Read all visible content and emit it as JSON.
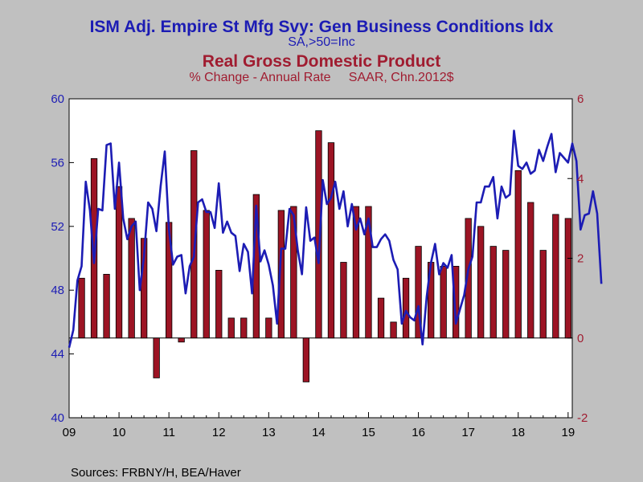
{
  "chart_data": {
    "type": "bar+line",
    "titles": [
      {
        "text": "ISM Adj. Empire St Mfg Svy: Gen Business Conditions Idx",
        "color": "#1c1cb4",
        "style": "bold"
      },
      {
        "text": "SA,>50=Inc",
        "color": "#1c1cb4",
        "style": "normal"
      },
      {
        "text": "Real Gross Domestic Product",
        "color": "#a01c30",
        "style": "bold"
      },
      {
        "text": "% Change - Annual Rate     SAAR, Chn.2012$",
        "color": "#a01c30",
        "style": "normal"
      }
    ],
    "source": "Sources:  FRBNY/H, BEA/Haver",
    "left_axis": {
      "min": 40,
      "max": 60,
      "ticks": [
        40,
        44,
        48,
        52,
        56,
        60
      ],
      "color": "#1c1cb4"
    },
    "right_axis": {
      "min": -2,
      "max": 6,
      "ticks": [
        -2,
        0,
        2,
        4,
        6
      ],
      "color": "#a01c30"
    },
    "x_axis": {
      "min": 2009.0,
      "max": 2019.0833,
      "labels": [
        "09",
        "10",
        "11",
        "12",
        "13",
        "14",
        "15",
        "16",
        "17",
        "18",
        "19"
      ]
    },
    "line_series": {
      "name": "ISM Adj. Empire St Mfg Svy: Gen Business Conditions Idx",
      "color": "#1c1cb4",
      "start": 2009.0,
      "step": 0.08333,
      "values": [
        44.4,
        45.5,
        48.6,
        49.5,
        54.8,
        53.0,
        49.7,
        53.1,
        53.0,
        57.1,
        57.2,
        53.1,
        56.0,
        52.5,
        51.2,
        52.0,
        52.3,
        48.0,
        50.1,
        53.5,
        53.1,
        51.7,
        54.5,
        56.7,
        51.8,
        49.6,
        50.1,
        50.2,
        47.8,
        49.5,
        50.1,
        53.5,
        53.7,
        52.9,
        52.9,
        51.9,
        54.7,
        51.6,
        52.3,
        51.6,
        51.4,
        49.2,
        50.9,
        50.4,
        47.8,
        53.3,
        49.8,
        50.5,
        49.6,
        48.3,
        45.9,
        50.6,
        50.6,
        53.1,
        52.7,
        50.5,
        49.0,
        53.2,
        51.1,
        51.3,
        49.7,
        54.9,
        53.4,
        53.8,
        54.8,
        53.1,
        54.2,
        52.0,
        53.4,
        51.8,
        52.5,
        51.5,
        52.5,
        50.7,
        50.7,
        51.2,
        51.5,
        51.1,
        49.9,
        49.3,
        45.9,
        46.7,
        46.3,
        46.1,
        47.0,
        44.6,
        47.6,
        49.7,
        50.9,
        49.0,
        49.7,
        49.4,
        50.2,
        45.9,
        46.8,
        47.7,
        49.3,
        50.1,
        53.5,
        53.5,
        54.5,
        54.5,
        55.1,
        52.5,
        54.5,
        53.8,
        54.0,
        58.0,
        55.8,
        55.6,
        56.0,
        55.3,
        55.5,
        56.8,
        56.1,
        57.0,
        57.8,
        55.4,
        56.6,
        56.3,
        56.0,
        57.2,
        56.1,
        51.8,
        52.7,
        52.8,
        54.2,
        52.8,
        48.4
      ]
    },
    "bar_series": {
      "name": "Real Gross Domestic Product",
      "color": "#9c1424",
      "quarters": [
        2009.25,
        2009.5,
        2009.75,
        2010.0,
        2010.25,
        2010.5,
        2010.75,
        2011.0,
        2011.25,
        2011.5,
        2011.75,
        2012.0,
        2012.25,
        2012.5,
        2012.75,
        2013.0,
        2013.25,
        2013.5,
        2013.75,
        2014.0,
        2014.25,
        2014.5,
        2014.75,
        2015.0,
        2015.25,
        2015.5,
        2015.75,
        2016.0,
        2016.25,
        2016.5,
        2016.75,
        2017.0,
        2017.25,
        2017.5,
        2017.75,
        2018.0,
        2018.25,
        2018.5,
        2018.75,
        2019.0
      ],
      "values": [
        1.5,
        4.5,
        1.6,
        3.8,
        3.0,
        2.5,
        -1.0,
        2.9,
        -0.1,
        4.7,
        3.2,
        1.7,
        0.5,
        0.5,
        3.6,
        0.5,
        3.2,
        3.3,
        -1.1,
        5.2,
        4.9,
        1.9,
        3.3,
        3.3,
        1.0,
        0.4,
        1.5,
        2.3,
        1.9,
        1.8,
        1.8,
        3.0,
        2.8,
        2.3,
        2.2,
        4.2,
        3.4,
        2.2,
        3.1,
        3.0
      ]
    }
  }
}
